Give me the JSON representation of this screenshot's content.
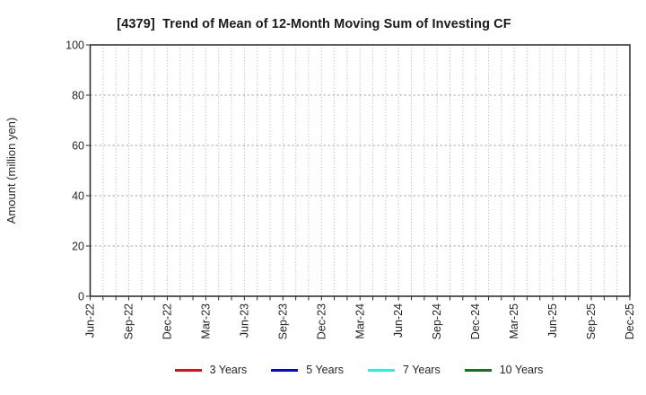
{
  "chart_data": {
    "type": "line",
    "title": "[4379]  Trend of Mean of 12-Month Moving Sum of Investing CF",
    "ylabel": "Amount (million yen)",
    "xlabel": "",
    "ylim": [
      0,
      100
    ],
    "yticks": [
      0,
      20,
      40,
      60,
      80,
      100
    ],
    "x_tick_labels": [
      "Jun-22",
      "Sep-22",
      "Dec-22",
      "Mar-23",
      "Jun-23",
      "Sep-23",
      "Dec-23",
      "Mar-24",
      "Jun-24",
      "Sep-24",
      "Dec-24",
      "Mar-25",
      "Jun-25",
      "Sep-25",
      "Dec-25"
    ],
    "months_between_labeled_ticks": 3,
    "grid": true,
    "grid_style": "dotted",
    "legend_position": "bottom",
    "plot_empty": true,
    "series": [
      {
        "name": "3 Years",
        "color": "#ff0000",
        "values": []
      },
      {
        "name": "5 Years",
        "color": "#0000ff",
        "values": []
      },
      {
        "name": "7 Years",
        "color": "#00ffff",
        "values": []
      },
      {
        "name": "10 Years",
        "color": "#008000",
        "values": []
      }
    ]
  },
  "colors": {
    "background": "#ffffff",
    "spine": "#262626",
    "tick_text": "#262626",
    "grid_vertical": "#b0b0b0",
    "grid_horizontal": "#a8a8a8",
    "title_text": "#1a1a1a"
  }
}
